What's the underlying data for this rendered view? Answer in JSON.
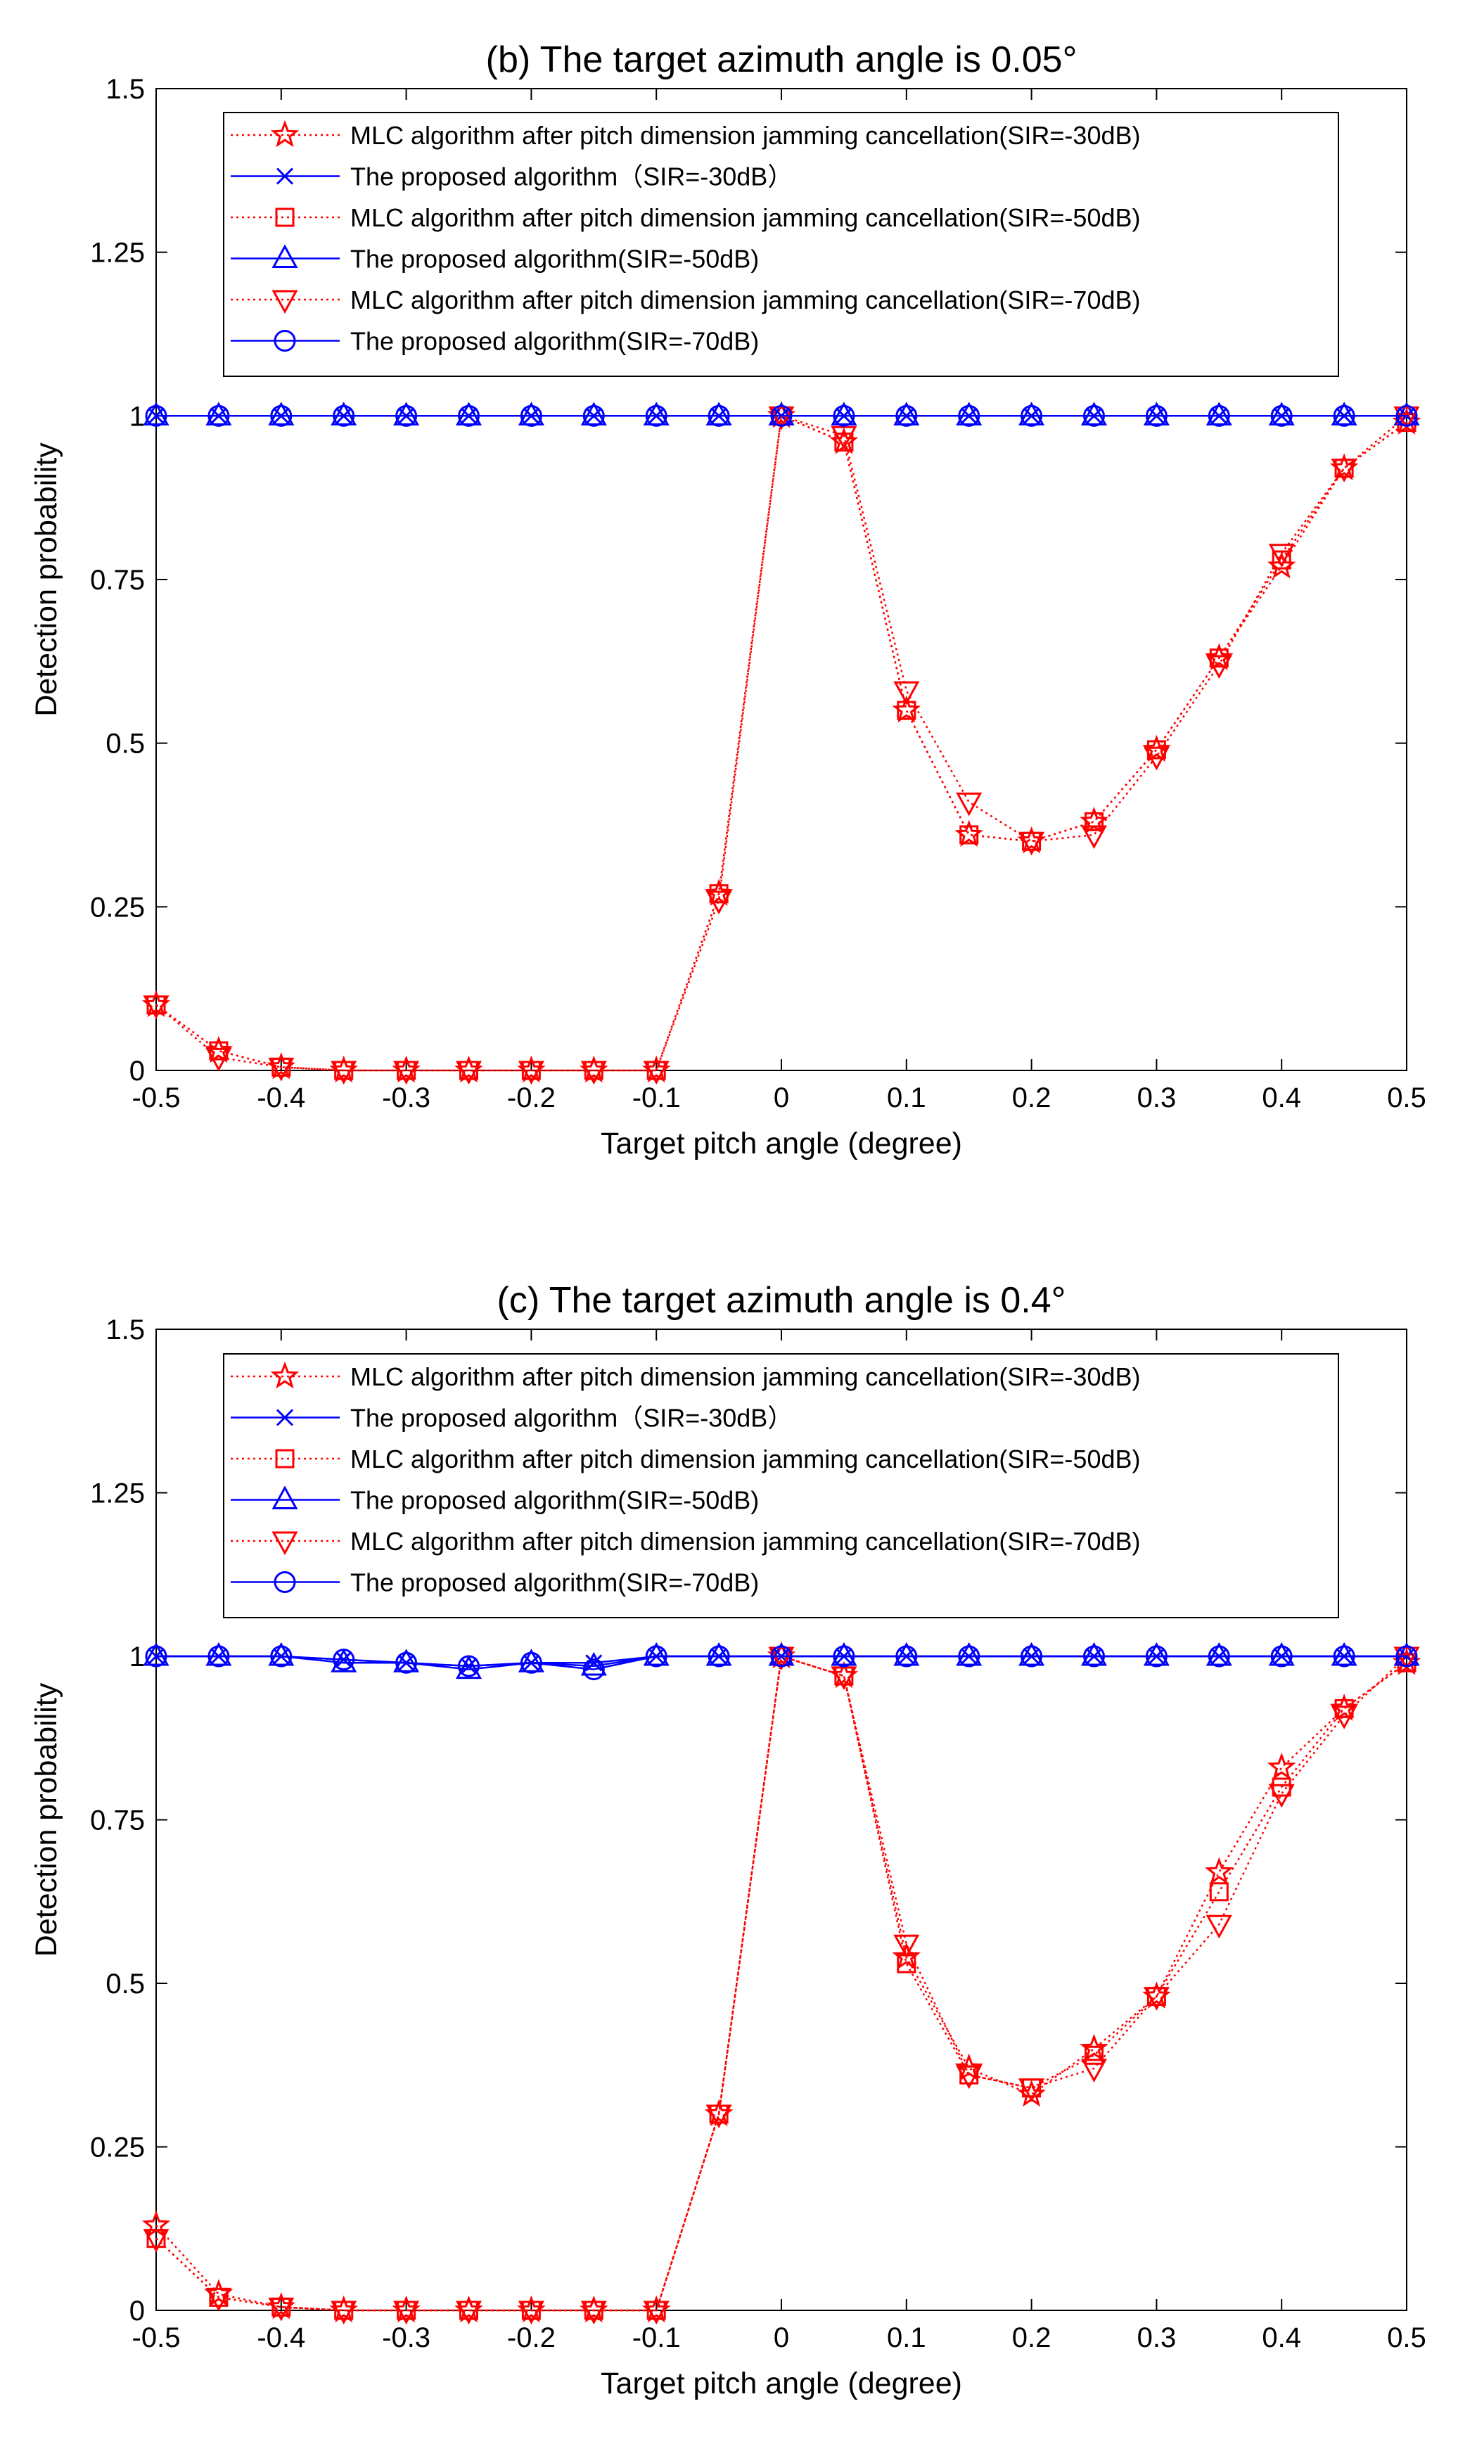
{
  "colors": {
    "red": "#ff0000",
    "blue": "#0000ff",
    "axis": "#000000"
  },
  "chart_data": [
    {
      "type": "line",
      "title": "(b) The target azimuth angle is 0.05°",
      "xlabel": "Target pitch angle (degree)",
      "ylabel": "Detection probability",
      "xlim": [
        -0.5,
        0.5
      ],
      "ylim": [
        0,
        1.5
      ],
      "x_ticks": [
        "-0.5",
        "-0.4",
        "-0.3",
        "-0.2",
        "-0.1",
        "0",
        "0.1",
        "0.2",
        "0.3",
        "0.4",
        "0.5"
      ],
      "y_ticks": [
        "0",
        "0.25",
        "0.5",
        "0.75",
        "1",
        "1.25",
        "1.5"
      ],
      "grid": false,
      "legend_position": "top",
      "x": [
        -0.5,
        -0.45,
        -0.4,
        -0.35,
        -0.3,
        -0.25,
        -0.2,
        -0.15,
        -0.1,
        -0.05,
        0,
        0.05,
        0.1,
        0.15,
        0.2,
        0.25,
        0.3,
        0.35,
        0.4,
        0.45,
        0.5
      ],
      "series": [
        {
          "name": "MLC algorithm after pitch dimension jamming cancellation(SIR=-30dB)",
          "color": "red",
          "line": "dotted",
          "marker": "star",
          "values": [
            0.1,
            0.03,
            0.005,
            0,
            0,
            0,
            0,
            0,
            0,
            0.27,
            1.0,
            0.96,
            0.55,
            0.36,
            0.35,
            0.38,
            0.49,
            0.63,
            0.77,
            0.92,
            0.99
          ]
        },
        {
          "name": "The proposed algorithm（SIR=-30dB）",
          "color": "blue",
          "line": "solid",
          "marker": "x",
          "values": [
            1,
            1,
            1,
            1,
            1,
            1,
            1,
            1,
            1,
            1,
            1,
            1,
            1,
            1,
            1,
            1,
            1,
            1,
            1,
            1,
            1
          ]
        },
        {
          "name": "MLC algorithm after pitch dimension jamming cancellation(SIR=-50dB)",
          "color": "red",
          "line": "dotted",
          "marker": "square",
          "values": [
            0.1,
            0.03,
            0.005,
            0,
            0,
            0,
            0,
            0,
            0,
            0.27,
            1.0,
            0.96,
            0.55,
            0.36,
            0.35,
            0.38,
            0.49,
            0.63,
            0.78,
            0.92,
            0.99
          ]
        },
        {
          "name": "The proposed algorithm(SIR=-50dB)",
          "color": "blue",
          "line": "solid",
          "marker": "triangle-up",
          "values": [
            1,
            1,
            1,
            1,
            1,
            1,
            1,
            1,
            1,
            1,
            1,
            1,
            1,
            1,
            1,
            1,
            1,
            1,
            1,
            1,
            1
          ]
        },
        {
          "name": "MLC algorithm after pitch dimension jamming cancellation(SIR=-70dB)",
          "color": "red",
          "line": "dotted",
          "marker": "triangle-down",
          "values": [
            0.1,
            0.02,
            0.005,
            0,
            0,
            0,
            0,
            0,
            0,
            0.26,
            1.0,
            0.97,
            0.58,
            0.41,
            0.35,
            0.36,
            0.48,
            0.62,
            0.79,
            0.92,
            1.0
          ]
        },
        {
          "name": "The proposed algorithm(SIR=-70dB)",
          "color": "blue",
          "line": "solid",
          "marker": "circle",
          "values": [
            1,
            1,
            1,
            1,
            1,
            1,
            1,
            1,
            1,
            1,
            1,
            1,
            1,
            1,
            1,
            1,
            1,
            1,
            1,
            1,
            1
          ]
        }
      ]
    },
    {
      "type": "line",
      "title": "(c) The target azimuth angle is 0.4°",
      "xlabel": "Target pitch angle (degree)",
      "ylabel": "Detection probability",
      "xlim": [
        -0.5,
        0.5
      ],
      "ylim": [
        0,
        1.5
      ],
      "x_ticks": [
        "-0.5",
        "-0.4",
        "-0.3",
        "-0.2",
        "-0.1",
        "0",
        "0.1",
        "0.2",
        "0.3",
        "0.4",
        "0.5"
      ],
      "y_ticks": [
        "0",
        "0.25",
        "0.5",
        "0.75",
        "1",
        "1.25",
        "1.5"
      ],
      "grid": false,
      "legend_position": "top",
      "x": [
        -0.5,
        -0.45,
        -0.4,
        -0.35,
        -0.3,
        -0.25,
        -0.2,
        -0.15,
        -0.1,
        -0.05,
        0,
        0.05,
        0.1,
        0.15,
        0.2,
        0.25,
        0.3,
        0.35,
        0.4,
        0.45,
        0.5
      ],
      "series": [
        {
          "name": "MLC algorithm after pitch dimension jamming cancellation(SIR=-30dB)",
          "color": "red",
          "line": "dotted",
          "marker": "star",
          "values": [
            0.13,
            0.025,
            0.005,
            0,
            0,
            0,
            0,
            0,
            0,
            0.3,
            1.0,
            0.97,
            0.54,
            0.37,
            0.33,
            0.4,
            0.48,
            0.67,
            0.83,
            0.92,
            0.99
          ]
        },
        {
          "name": "The proposed algorithm（SIR=-30dB）",
          "color": "blue",
          "line": "solid",
          "marker": "x",
          "values": [
            1.0,
            1.0,
            1.0,
            0.995,
            0.99,
            0.985,
            0.99,
            0.99,
            1.0,
            1.0,
            1.0,
            1.0,
            1.0,
            1.0,
            1.0,
            1.0,
            1.0,
            1.0,
            1.0,
            1.0,
            1.0
          ]
        },
        {
          "name": "MLC algorithm after pitch dimension jamming cancellation(SIR=-50dB)",
          "color": "red",
          "line": "dotted",
          "marker": "square",
          "values": [
            0.11,
            0.02,
            0.005,
            0,
            0,
            0,
            0,
            0,
            0,
            0.3,
            1.0,
            0.97,
            0.53,
            0.36,
            0.34,
            0.39,
            0.48,
            0.64,
            0.8,
            0.92,
            0.99
          ]
        },
        {
          "name": "The proposed algorithm(SIR=-50dB)",
          "color": "blue",
          "line": "solid",
          "marker": "triangle-up",
          "values": [
            1.0,
            1.0,
            1.0,
            0.99,
            0.99,
            0.98,
            0.99,
            0.985,
            1.0,
            1.0,
            1.0,
            1.0,
            1.0,
            1.0,
            1.0,
            1.0,
            1.0,
            1.0,
            1.0,
            1.0,
            1.0
          ]
        },
        {
          "name": "MLC algorithm after pitch dimension jamming cancellation(SIR=-70dB)",
          "color": "red",
          "line": "dotted",
          "marker": "triangle-down",
          "values": [
            0.11,
            0.02,
            0.005,
            0,
            0,
            0,
            0,
            0,
            0,
            0.3,
            1.0,
            0.97,
            0.56,
            0.36,
            0.34,
            0.37,
            0.48,
            0.59,
            0.79,
            0.91,
            1.0
          ]
        },
        {
          "name": "The proposed algorithm(SIR=-70dB)",
          "color": "blue",
          "line": "solid",
          "marker": "circle",
          "values": [
            1.0,
            1.0,
            1.0,
            0.995,
            0.99,
            0.985,
            0.99,
            0.98,
            1.0,
            1.0,
            1.0,
            1.0,
            1.0,
            1.0,
            1.0,
            1.0,
            1.0,
            1.0,
            1.0,
            1.0,
            1.0
          ]
        }
      ]
    }
  ]
}
